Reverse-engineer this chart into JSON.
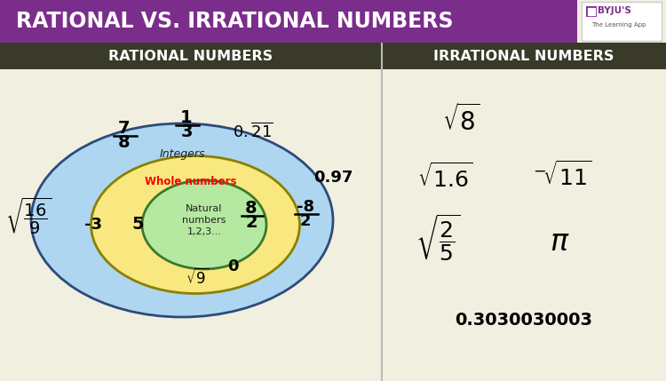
{
  "title": "RATIONAL VS. IRRATIONAL NUMBERS",
  "title_bg": "#7B2D8B",
  "title_color": "#FFFFFF",
  "section_bg": "#3A3A2A",
  "section_text_color": "#FFFFFF",
  "left_section_title": "RATIONAL NUMBERS",
  "right_section_title": "IRRATIONAL NUMBERS",
  "main_bg": "#F0EFE0",
  "outer_ellipse_color": "#AED6F1",
  "middle_ellipse_color": "#F9E87F",
  "inner_ellipse_color": "#B5E8A0",
  "outer_ellipse_edge": "#2E4A7A",
  "middle_ellipse_edge": "#8B8000",
  "inner_ellipse_edge": "#3A7A2A",
  "divider_color": "#BBBBBB",
  "byju_bg": "#7B2D8B"
}
